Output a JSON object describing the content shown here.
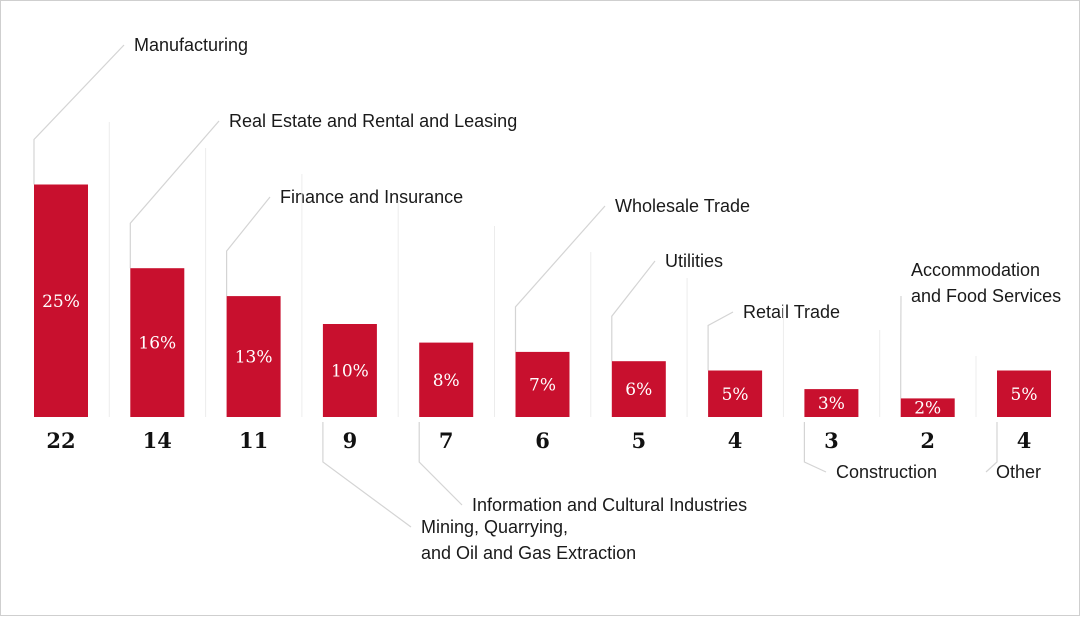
{
  "chart_data": {
    "type": "bar",
    "categories": [
      "Manufacturing",
      "Real Estate and Rental and Leasing",
      "Finance and Insurance",
      "Mining, Quarrying, and Oil and Gas Extraction",
      "Information and Cultural Industries",
      "Wholesale Trade",
      "Utilities",
      "Retail Trade",
      "Construction",
      "Accommodation and Food Services",
      "Other"
    ],
    "values": [
      25,
      16,
      13,
      10,
      8,
      7,
      6,
      5,
      3,
      2,
      5
    ],
    "percent_labels": [
      "25%",
      "16%",
      "13%",
      "10%",
      "8%",
      "7%",
      "6%",
      "5%",
      "3%",
      "2%",
      "5%"
    ],
    "counts": [
      "22",
      "14",
      "11",
      "9",
      "7",
      "6",
      "5",
      "4",
      "3",
      "2",
      "4"
    ],
    "label_lines": [
      [
        "Manufacturing"
      ],
      [
        "Real Estate and Rental and Leasing"
      ],
      [
        "Finance and Insurance"
      ],
      [
        "Mining, Quarrying,",
        "and Oil and Gas Extraction"
      ],
      [
        "Information and Cultural Industries"
      ],
      [
        "Wholesale Trade"
      ],
      [
        "Utilities"
      ],
      [
        "Retail Trade"
      ],
      [
        "Construction"
      ],
      [
        "Accommodation",
        "and Food Services"
      ],
      [
        "Other"
      ]
    ],
    "label_position": [
      "above",
      "above",
      "above",
      "below",
      "below",
      "above",
      "above",
      "above",
      "below",
      "above",
      "below"
    ],
    "bar_color": "#c8102e",
    "leader_color": "#d4d4d4",
    "title": "",
    "xlabel": "",
    "ylabel": ""
  }
}
